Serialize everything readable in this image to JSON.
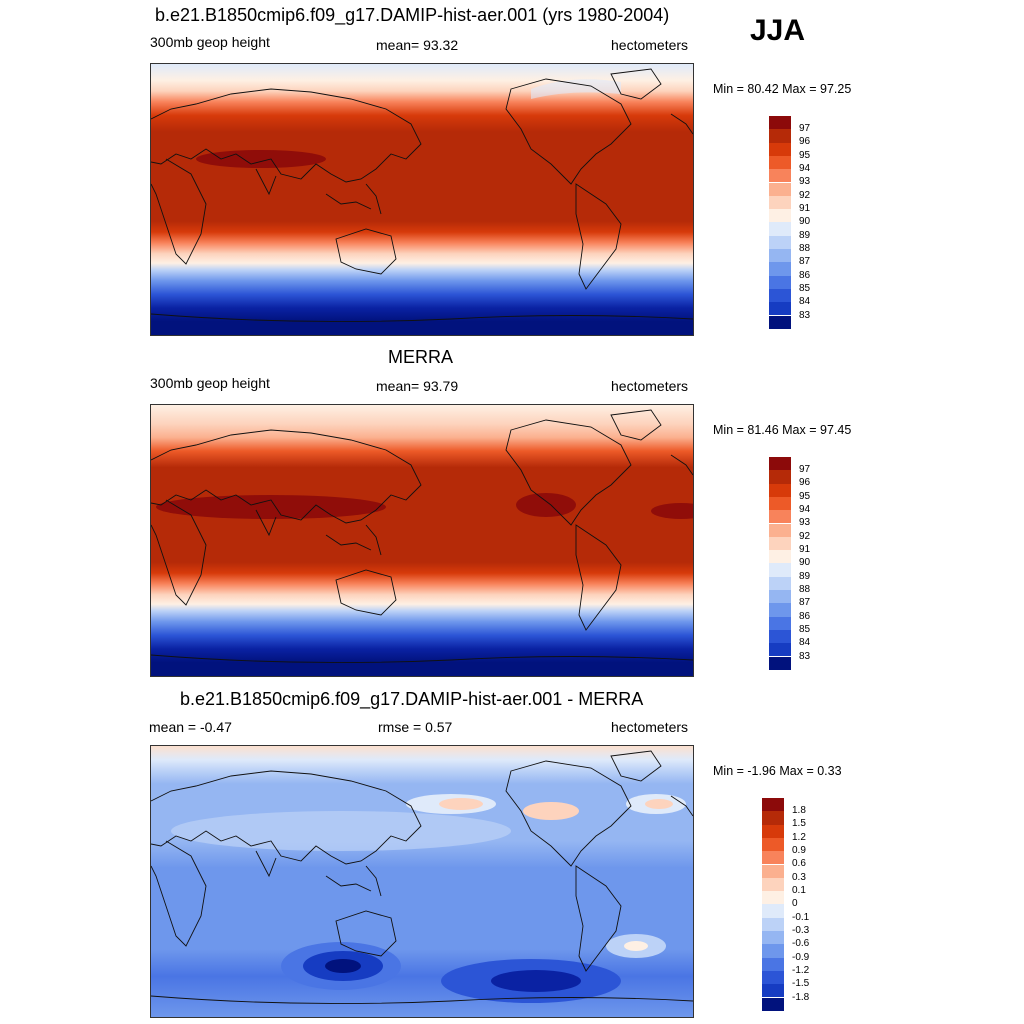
{
  "season": "JJA",
  "panels": [
    {
      "title": "b.e21.B1850cmip6.f09_g17.DAMIP-hist-aer.001 (yrs 1980-2004)",
      "left_label": "300mb geop height",
      "center_label": "mean=  93.32",
      "right_label": "hectometers",
      "minmax": "Min =  80.42 Max =  97.25",
      "colorbar": {
        "colors": [
          "#fbe7d8",
          "#8c0a0a",
          "#b52a08",
          "#d73a0a",
          "#ed5a28",
          "#f8835b",
          "#fbb08f",
          "#fdd3bd",
          "#fef0e4",
          "#dfeafa",
          "#bcd2f7",
          "#95b6f2",
          "#6e97ec",
          "#4a75e4",
          "#2c55d6",
          "#163cc2",
          "#0a22a3",
          "#01127d"
        ],
        "ticks": [
          "97",
          "96",
          "95",
          "94",
          "93",
          "92",
          "91",
          "90",
          "89",
          "88",
          "87",
          "86",
          "85",
          "84",
          "83"
        ]
      }
    },
    {
      "title": "MERRA",
      "left_label": "300mb geop height",
      "center_label": "mean=  93.79",
      "right_label": "hectometers",
      "minmax": "Min =  81.46 Max =  97.45",
      "colorbar": {
        "ticks": [
          "97",
          "96",
          "95",
          "94",
          "93",
          "92",
          "91",
          "90",
          "89",
          "88",
          "87",
          "86",
          "85",
          "84",
          "83"
        ]
      }
    },
    {
      "title": "b.e21.B1850cmip6.f09_g17.DAMIP-hist-aer.001 - MERRA",
      "left_label": "mean =  -0.47",
      "center_label": "rmse =   0.57",
      "right_label": "hectometers",
      "minmax": "Min =  -1.96 Max =   0.33",
      "colorbar": {
        "ticks": [
          "1.8",
          "1.5",
          "1.2",
          "0.9",
          "0.6",
          "0.3",
          "0.1",
          "0",
          "-0.1",
          "-0.3",
          "-0.6",
          "-0.9",
          "-1.2",
          "-1.5",
          "-1.8"
        ]
      }
    }
  ]
}
